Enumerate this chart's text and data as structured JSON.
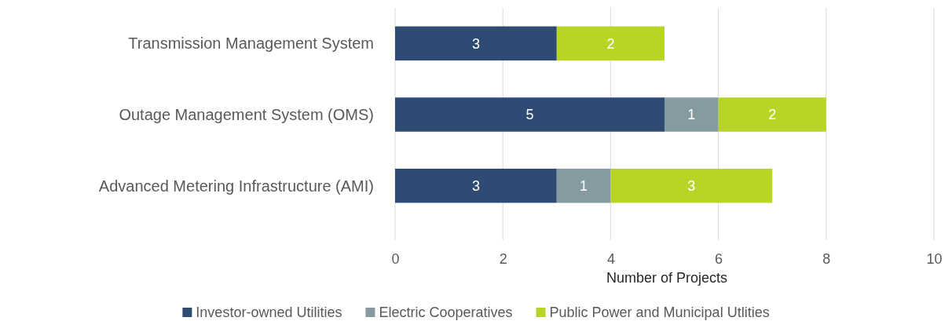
{
  "chart_data": {
    "type": "bar",
    "orientation": "horizontal",
    "stacked": true,
    "xlabel": "Number of Projects",
    "categories": [
      "Transmission Management System",
      "Outage Management System (OMS)",
      "Advanced Metering Infrastructure (AMI)"
    ],
    "series": [
      {
        "name": "Investor-owned Utilities",
        "color": "#2d4b73",
        "values": [
          3,
          5,
          3
        ]
      },
      {
        "name": "Electric Cooperatives",
        "color": "#869aa2",
        "values": [
          null,
          1,
          1
        ]
      },
      {
        "name": "Public Power and Municipal Utlities",
        "color": "#b7d427",
        "values": [
          2,
          2,
          3
        ]
      }
    ],
    "xlim": [
      0,
      10
    ],
    "xticks": [
      0,
      2,
      4,
      6,
      8,
      10
    ],
    "grid": "x",
    "legend": "bottom",
    "data_labels": true
  }
}
